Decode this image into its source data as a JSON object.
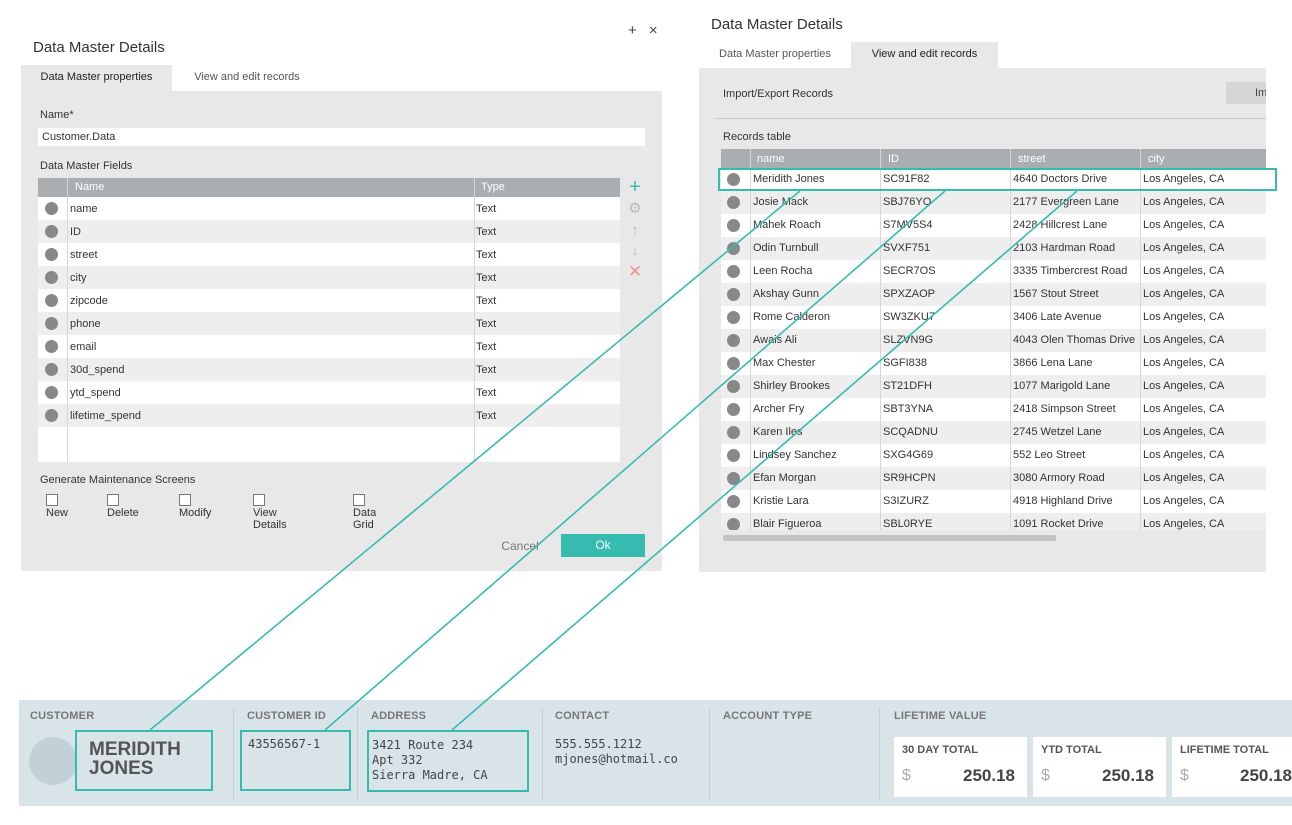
{
  "left_dialog": {
    "title": "Data Master Details",
    "controls": "+ ×",
    "tabs": [
      "Data Master properties",
      "View and edit records"
    ],
    "name_label": "Name*",
    "name_value": "Customer.Data",
    "fields_label": "Data Master Fields",
    "fields_headers": [
      "Name",
      "Type"
    ],
    "fields": [
      {
        "name": "name",
        "type": "Text"
      },
      {
        "name": "ID",
        "type": "Text"
      },
      {
        "name": "street",
        "type": "Text"
      },
      {
        "name": "city",
        "type": "Text"
      },
      {
        "name": "zipcode",
        "type": "Text"
      },
      {
        "name": "phone",
        "type": "Text"
      },
      {
        "name": "email",
        "type": "Text"
      },
      {
        "name": "30d_spend",
        "type": "Text"
      },
      {
        "name": "ytd_spend",
        "type": "Text"
      },
      {
        "name": "lifetime_spend",
        "type": "Text"
      }
    ],
    "side_icons": [
      "plus-icon",
      "gear-icon",
      "arrow-up-icon",
      "arrow-down-icon",
      "delete-icon"
    ],
    "maintenance_label": "Generate Maintenance Screens",
    "checkboxes": [
      "New",
      "Delete",
      "Modify",
      "View Details",
      "Data Grid"
    ],
    "cancel_label": "Cancel",
    "ok_label": "Ok",
    "accent_color": "#36bbb0"
  },
  "right_dialog": {
    "title": "Data Master Details",
    "tabs": [
      "Data Master properties",
      "View and edit records"
    ],
    "import_label": "Import/Export Records",
    "import_button": "Im",
    "records_label": "Records table",
    "headers": [
      "name",
      "ID",
      "street",
      "city"
    ],
    "records": [
      [
        "Meridith Jones",
        "SC91F82",
        "4640 Doctors Drive",
        "Los Angeles, CA"
      ],
      [
        "Josie Mack",
        "SBJ76YO",
        "2177 Evergreen Lane",
        "Los Angeles, CA"
      ],
      [
        "Mahek Roach",
        "S7MV5S4",
        "2428 Hillcrest Lane",
        "Los Angeles, CA"
      ],
      [
        "Odin Turnbull",
        "SVXF751",
        "2103 Hardman Road",
        "Los Angeles, CA"
      ],
      [
        "Leen Rocha",
        "SECR7OS",
        "3335 Timbercrest Road",
        "Los Angeles, CA"
      ],
      [
        "Akshay Gunn",
        "SPXZAOP",
        "1567 Stout Street",
        "Los Angeles, CA"
      ],
      [
        "Rome Calderon",
        "SW3ZKU7",
        "3406 Late Avenue",
        "Los Angeles, CA"
      ],
      [
        "Awais Ali",
        "SLZVN9G",
        "4043 Olen Thomas Drive",
        "Los Angeles, CA"
      ],
      [
        "Max Chester",
        "SGFI838",
        "3866 Lena Lane",
        "Los Angeles, CA"
      ],
      [
        "Shirley Brookes",
        "ST21DFH",
        "1077 Marigold Lane",
        "Los Angeles, CA"
      ],
      [
        "Archer Fry",
        "SBT3YNA",
        "2418 Simpson Street",
        "Los Angeles, CA"
      ],
      [
        "Karen Iles",
        "SCQADNU",
        "2745 Wetzel Lane",
        "Los Angeles, CA"
      ],
      [
        "Lindsey Sanchez",
        "SXG4G69",
        "552 Leo Street",
        "Los Angeles, CA"
      ],
      [
        "Efan Morgan",
        "SR9HCPN",
        "3080 Armory Road",
        "Los Angeles, CA"
      ],
      [
        "Kristie Lara",
        "S3IZURZ",
        "4918 Highland Drive",
        "Los Angeles, CA"
      ],
      [
        "Blair Figueroa",
        "SBL0RYE",
        "1091 Rocket Drive",
        "Los Angeles, CA"
      ]
    ]
  },
  "customer_card": {
    "customer_label": "CUSTOMER",
    "customer_name": "MERIDITH JONES",
    "customer_id_label": "CUSTOMER ID",
    "customer_id": "43556567-1",
    "address_label": "ADDRESS",
    "address": "3421 Route 234\nApt 332\nSierra Madre, CA",
    "contact_label": "CONTACT",
    "contact": "555.555.1212\nmjones@hotmail.co",
    "account_type_label": "ACCOUNT TYPE",
    "lifetime_value_label": "LIFETIME VALUE",
    "totals": [
      {
        "label": "30 DAY TOTAL",
        "currency": "$",
        "value": "250.18"
      },
      {
        "label": "YTD TOTAL",
        "currency": "$",
        "value": "250.18"
      },
      {
        "label": "LIFETIME TOTAL",
        "currency": "$",
        "value": "250.18"
      }
    ]
  }
}
